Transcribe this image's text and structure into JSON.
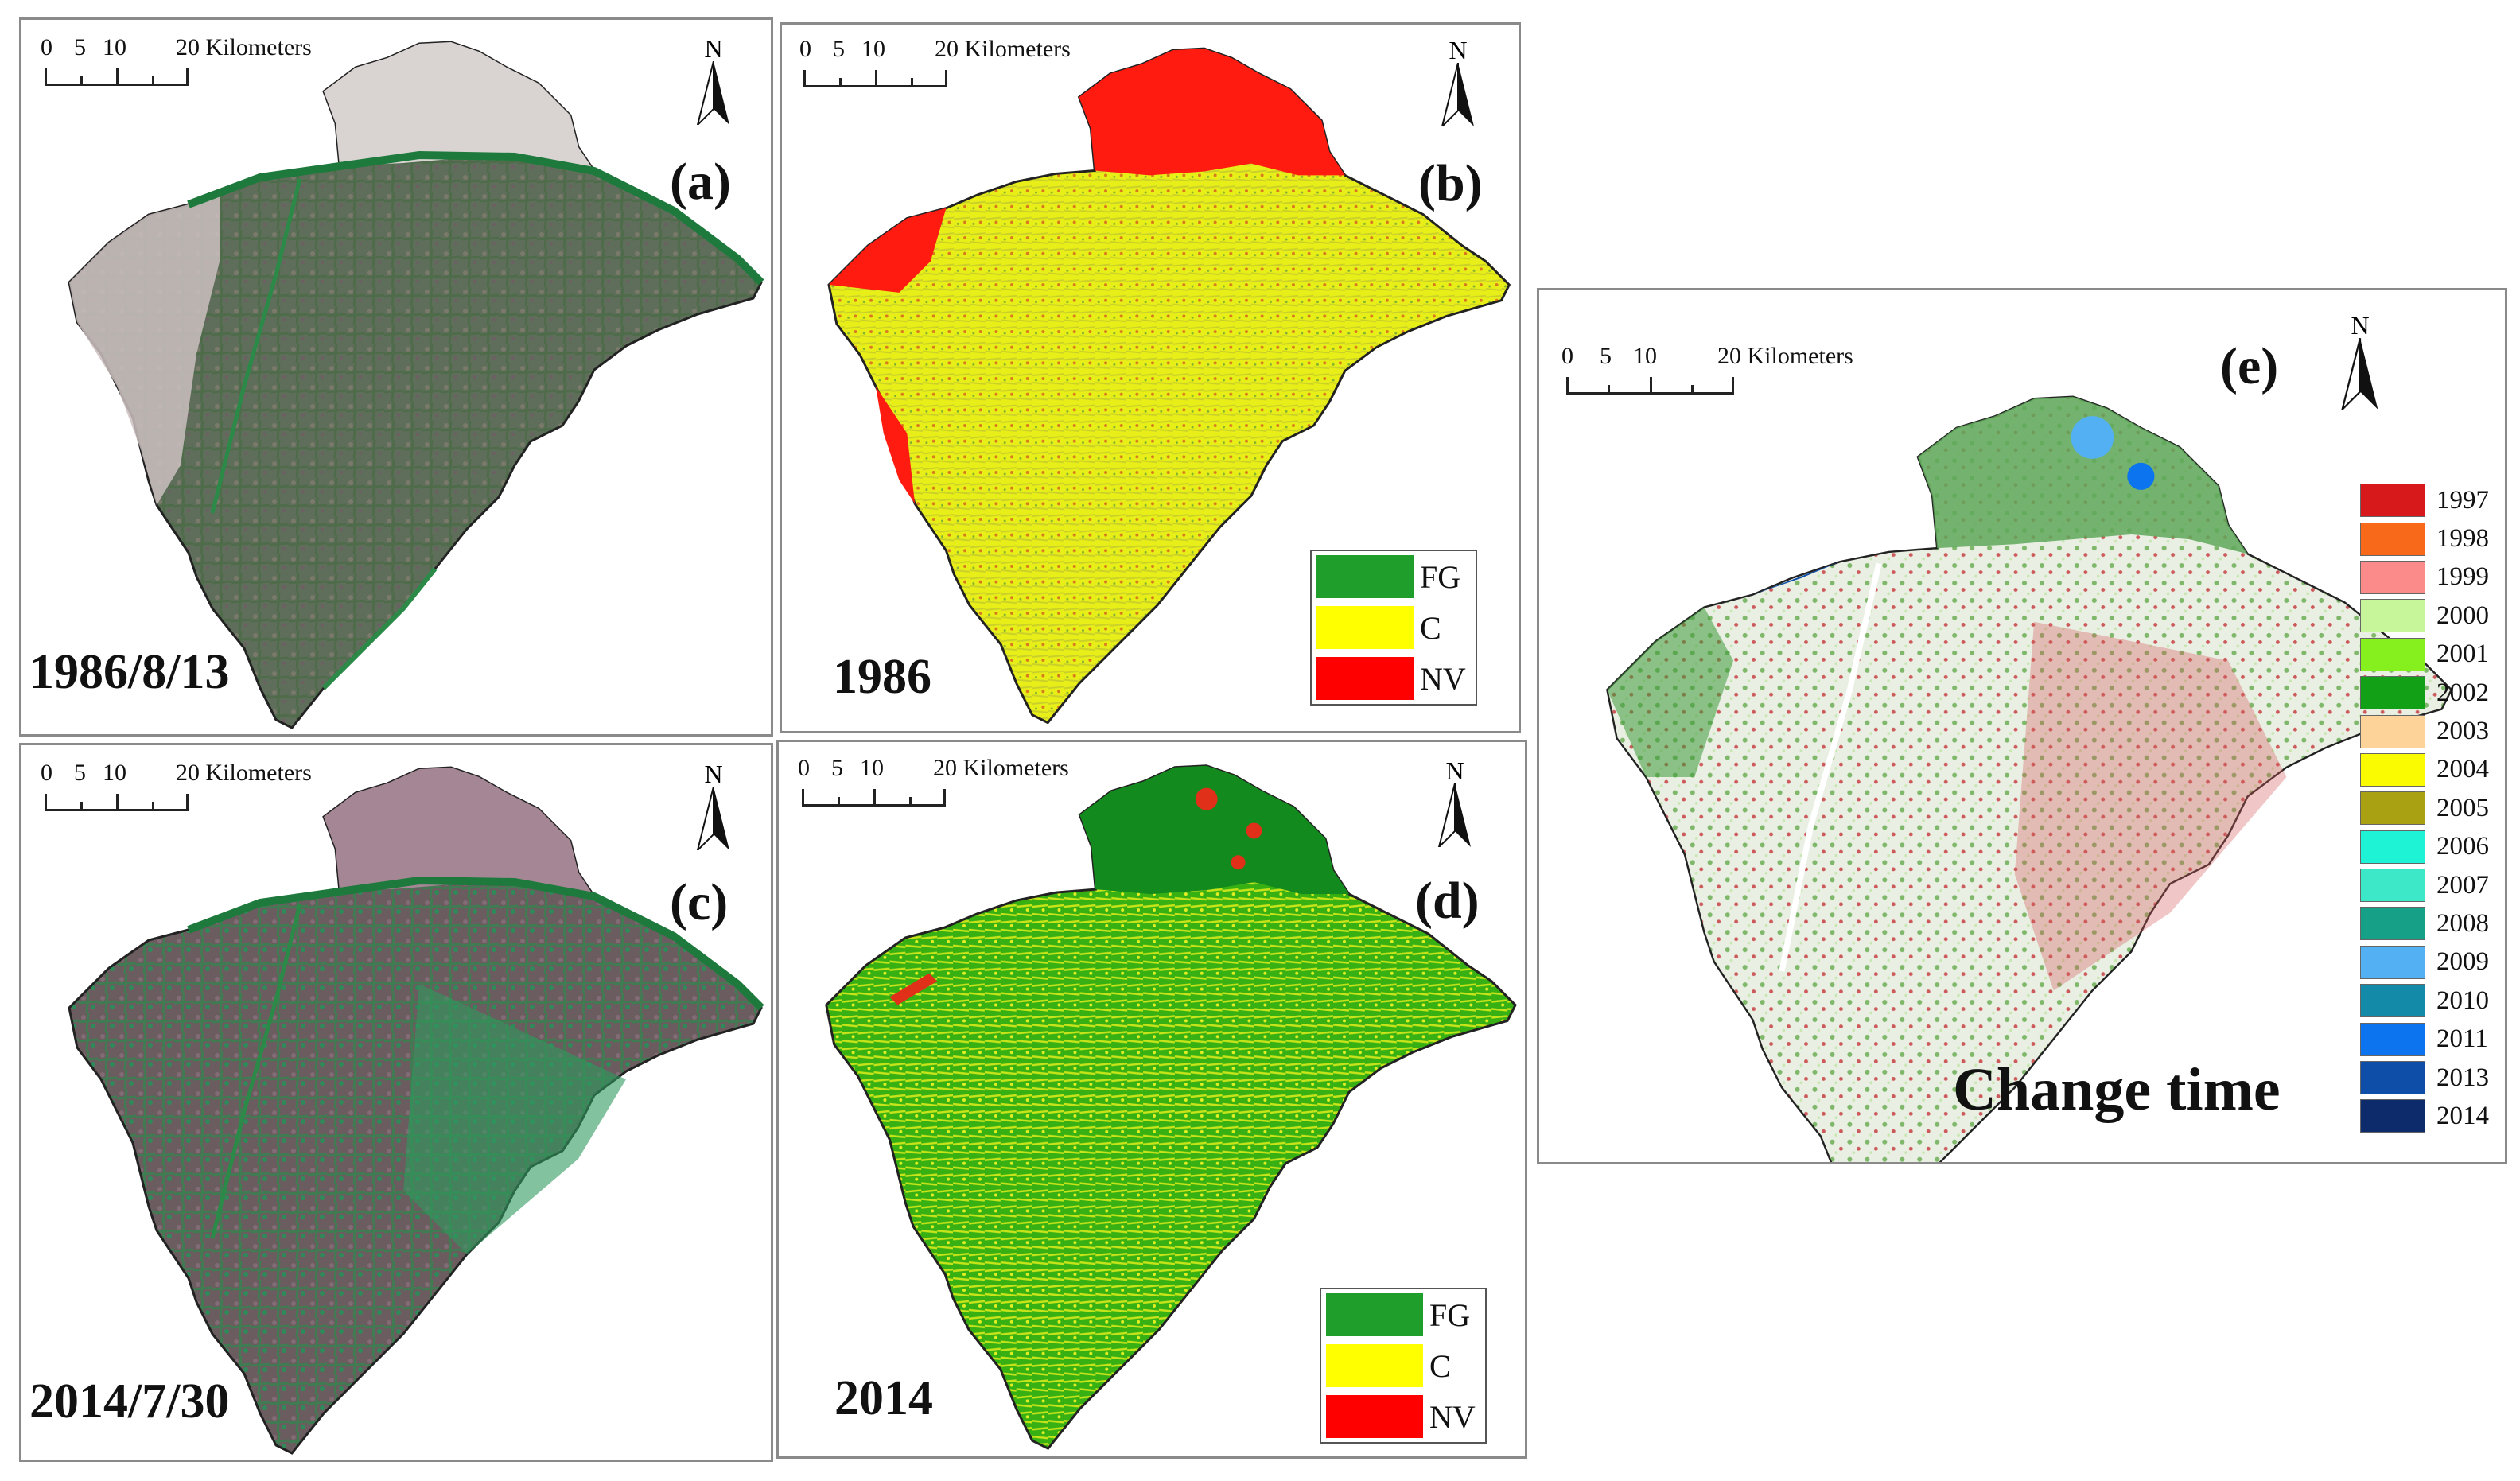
{
  "scale_bar": {
    "ticks": [
      "0",
      "5",
      "10",
      "20 Kilometers"
    ]
  },
  "north_arrow": {
    "label": "N"
  },
  "panels": {
    "a": {
      "label": "(a)",
      "date": "1986/8/13"
    },
    "b": {
      "label": "(b)",
      "date": "1986"
    },
    "c": {
      "label": "(c)",
      "date": "2014/7/30"
    },
    "d": {
      "label": "(d)",
      "date": "2014"
    },
    "e": {
      "label": "(e)",
      "title": "Change time"
    }
  },
  "class_legend": [
    {
      "label": "FG",
      "color": "#1f9e2c"
    },
    {
      "label": "C",
      "color": "#ffff00"
    },
    {
      "label": "NV",
      "color": "#ff0000"
    }
  ],
  "year_legend": [
    {
      "label": "1997",
      "color": "#d7191c"
    },
    {
      "label": "1998",
      "color": "#f86a1a"
    },
    {
      "label": "1999",
      "color": "#fb8a8a"
    },
    {
      "label": "2000",
      "color": "#c7f59a"
    },
    {
      "label": "2001",
      "color": "#86f01f"
    },
    {
      "label": "2002",
      "color": "#12a116"
    },
    {
      "label": "2003",
      "color": "#fed39a"
    },
    {
      "label": "2004",
      "color": "#fafa00"
    },
    {
      "label": "2005",
      "color": "#a9a012"
    },
    {
      "label": "2006",
      "color": "#1ef3d6"
    },
    {
      "label": "2007",
      "color": "#3de8c8"
    },
    {
      "label": "2008",
      "color": "#16a088"
    },
    {
      "label": "2009",
      "color": "#53b0f3"
    },
    {
      "label": "2010",
      "color": "#128aa8"
    },
    {
      "label": "2011",
      "color": "#0b74ee"
    },
    {
      "label": "2013",
      "color": "#0f4ea8"
    },
    {
      "label": "2014",
      "color": "#0d2a6b"
    }
  ]
}
